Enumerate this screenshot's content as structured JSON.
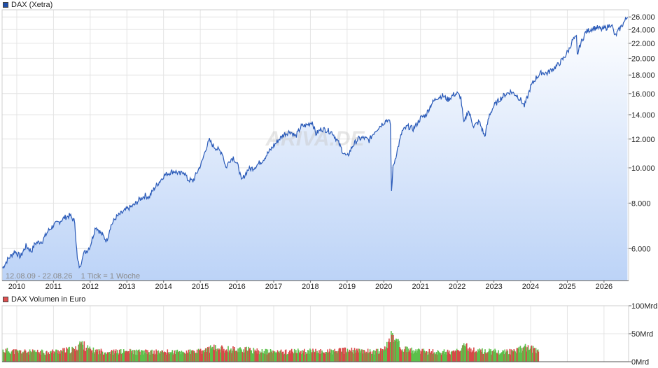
{
  "price_chart": {
    "legend_label": "DAX (Xetra)",
    "legend_color": "#1f4faa",
    "line_color": "#2a5ab8",
    "info_text": "12.08.09 - 22.08.26    1 Tick = 1 Woche",
    "watermark": "ARIVA.DE"
  },
  "volume_chart": {
    "legend_label": "DAX Volumen in Euro",
    "legend_color": "#e05050",
    "up_color": "#5cc04a",
    "down_color": "#d84848"
  },
  "chart_data": [
    {
      "type": "area",
      "title": "DAX (Xetra)",
      "yscale": "log",
      "ylim": [
        4900,
        27200
      ],
      "y_tick_labels": [
        "6.000",
        "8.000",
        "10.000",
        "12.000",
        "14.000",
        "16.000",
        "18.000",
        "20.000",
        "22.000",
        "24.000",
        "26.000"
      ],
      "y_tick_values": [
        6000,
        8000,
        10000,
        12000,
        14000,
        16000,
        18000,
        20000,
        22000,
        24000,
        26000
      ],
      "x_tick_labels": [
        "2010",
        "2011",
        "2012",
        "2013",
        "2014",
        "2015",
        "2016",
        "2017",
        "2018",
        "2019",
        "2020",
        "2021",
        "2022",
        "2023",
        "2024",
        "2025",
        "2026"
      ],
      "x_tick_values": [
        2010.0,
        2011.0,
        2012.0,
        2013.0,
        2014.0,
        2015.0,
        2016.0,
        2017.0,
        2018.0,
        2019.0,
        2020.0,
        2021.0,
        2022.0,
        2023.0,
        2024.0,
        2025.0,
        2026.0
      ],
      "xlim": [
        2009.6,
        2026.67
      ],
      "grid": true,
      "legend_position": "top-left",
      "series": [
        {
          "name": "DAX (Xetra)",
          "x": [
            2009.61,
            2009.75,
            2009.95,
            2010.1,
            2010.25,
            2010.4,
            2010.5,
            2010.7,
            2010.85,
            2011.0,
            2011.15,
            2011.3,
            2011.45,
            2011.58,
            2011.65,
            2011.72,
            2011.8,
            2011.9,
            2012.0,
            2012.15,
            2012.3,
            2012.45,
            2012.55,
            2012.7,
            2012.85,
            2013.0,
            2013.2,
            2013.35,
            2013.5,
            2013.6,
            2013.75,
            2013.9,
            2014.0,
            2014.15,
            2014.3,
            2014.45,
            2014.55,
            2014.65,
            2014.8,
            2014.95,
            2015.05,
            2015.15,
            2015.25,
            2015.35,
            2015.5,
            2015.6,
            2015.7,
            2015.8,
            2015.9,
            2016.05,
            2016.12,
            2016.3,
            2016.45,
            2016.55,
            2016.7,
            2016.85,
            2017.0,
            2017.15,
            2017.3,
            2017.45,
            2017.6,
            2017.75,
            2017.9,
            2018.05,
            2018.15,
            2018.3,
            2018.45,
            2018.6,
            2018.75,
            2018.9,
            2019.0,
            2019.15,
            2019.3,
            2019.45,
            2019.6,
            2019.75,
            2019.95,
            2020.1,
            2020.18,
            2020.21,
            2020.25,
            2020.35,
            2020.5,
            2020.65,
            2020.8,
            2020.9,
            2021.0,
            2021.15,
            2021.3,
            2021.45,
            2021.6,
            2021.75,
            2021.9,
            2022.0,
            2022.1,
            2022.18,
            2022.3,
            2022.45,
            2022.6,
            2022.75,
            2022.88,
            2023.0,
            2023.15,
            2023.3,
            2023.45,
            2023.6,
            2023.75,
            2023.83,
            2023.9,
            2024.0,
            2024.15,
            2024.3,
            2024.45,
            2024.6,
            2024.75,
            2024.9,
            2025.05,
            2025.15,
            2025.25,
            2025.27,
            2025.35,
            2025.5,
            2025.65,
            2025.8,
            2025.95,
            2026.1,
            2026.2,
            2026.3,
            2026.45,
            2026.55,
            2026.64
          ],
          "values": [
            5300,
            5600,
            5900,
            5700,
            6100,
            5900,
            6200,
            6300,
            6700,
            6950,
            7100,
            7300,
            7400,
            7100,
            5600,
            5300,
            5800,
            5900,
            6100,
            6900,
            6600,
            6300,
            6900,
            7300,
            7500,
            7700,
            7900,
            8200,
            8400,
            8300,
            8800,
            9200,
            9500,
            9700,
            9800,
            9600,
            9800,
            9300,
            9200,
            9900,
            10400,
            11300,
            11900,
            11500,
            11200,
            11000,
            10000,
            10500,
            10700,
            10000,
            9200,
            9900,
            10000,
            10200,
            10500,
            11000,
            11500,
            12000,
            12400,
            12600,
            12200,
            13000,
            13100,
            13400,
            12400,
            12800,
            12700,
            12500,
            11800,
            11000,
            10700,
            11500,
            12000,
            12100,
            11900,
            12600,
            13200,
            13600,
            13200,
            8600,
            10000,
            11000,
            12600,
            13000,
            12800,
            13200,
            13700,
            14000,
            15000,
            15600,
            15800,
            15400,
            15900,
            16000,
            15600,
            13200,
            14400,
            13000,
            13400,
            12200,
            14000,
            14800,
            15400,
            15900,
            16200,
            15900,
            15300,
            14800,
            15500,
            16700,
            17700,
            18300,
            18200,
            18700,
            19200,
            20000,
            21200,
            22500,
            22800,
            20400,
            21800,
            23600,
            24100,
            24300,
            24000,
            24400,
            24900,
            23000,
            24300,
            25200,
            26000
          ]
        }
      ]
    },
    {
      "type": "bar",
      "title": "DAX Volumen in Euro",
      "ylim": [
        0,
        100
      ],
      "y_tick_labels": [
        "0Mrd",
        "50Mrd",
        "100Mrd"
      ],
      "y_tick_values": [
        0,
        50,
        100
      ],
      "xlim": [
        2009.6,
        2026.67
      ],
      "grid": true,
      "series": [
        {
          "name": "DAX Volumen in Euro",
          "x": [
            2009.61,
            2010.0,
            2010.4,
            2010.85,
            2011.2,
            2011.6,
            2011.7,
            2012.0,
            2012.5,
            2013.0,
            2013.5,
            2014.0,
            2014.5,
            2015.0,
            2015.3,
            2015.7,
            2016.1,
            2016.5,
            2017.0,
            2017.5,
            2018.0,
            2018.5,
            2019.0,
            2019.5,
            2020.0,
            2020.2,
            2020.5,
            2021.0,
            2021.5,
            2022.0,
            2022.2,
            2022.5,
            2023.0,
            2023.5,
            2023.9,
            2024.2
          ],
          "values": [
            20,
            18,
            17,
            17,
            19,
            22,
            34,
            20,
            17,
            18,
            17,
            17,
            17,
            18,
            24,
            22,
            22,
            19,
            17,
            18,
            18,
            18,
            20,
            18,
            19,
            48,
            22,
            18,
            17,
            18,
            27,
            19,
            18,
            18,
            26,
            18
          ]
        }
      ]
    }
  ]
}
